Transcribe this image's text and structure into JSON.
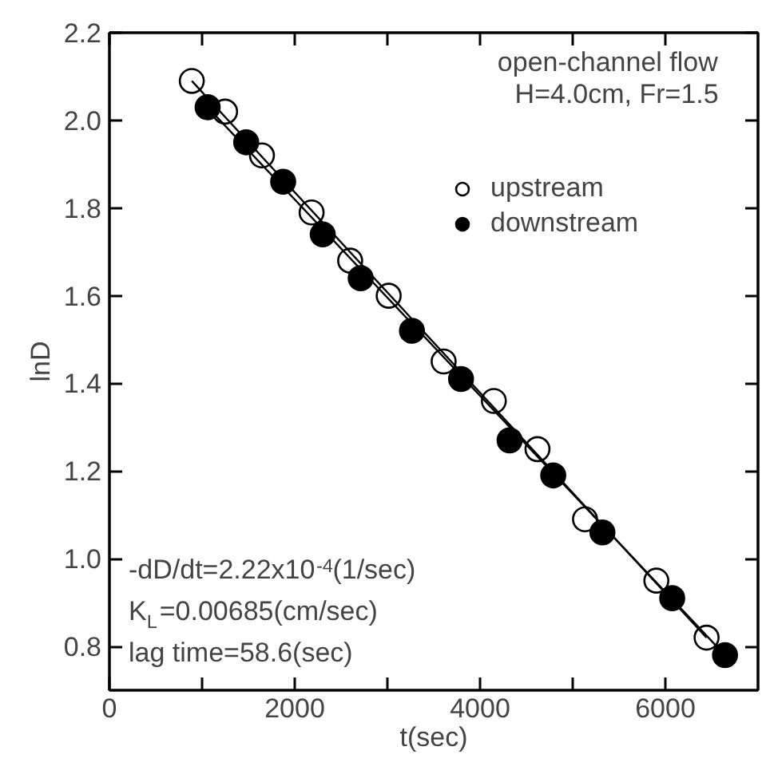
{
  "chart_data": {
    "type": "scatter",
    "xlabel": "t(sec)",
    "ylabel": "lnD",
    "xlim": [
      0,
      7000
    ],
    "ylim": [
      0.7,
      2.2
    ],
    "xticks": [
      0,
      {
        "value": 1000,
        "label": null
      },
      2000,
      {
        "value": 3000,
        "label": null
      },
      4000,
      {
        "value": 5000,
        "label": null
      },
      6000
    ],
    "yticks": [
      0.8,
      {
        "value": 1.0,
        "label": "1.0"
      },
      1.2,
      1.4,
      1.6,
      1.8,
      {
        "value": 2.0,
        "label": "2.0"
      },
      2.2
    ],
    "legend": "top right",
    "grid": false,
    "annotations": [
      "open-channel flow",
      "H=4.0cm, Fr=1.5",
      "-dD/dt=2.22x10$^{-4}$(1/sec)",
      "K$_{L}$=0.00685(cm/sec)",
      "lag time=58.6(sec)"
    ],
    "series": [
      {
        "name": "upstream",
        "marker": "circle",
        "color": "#ffffff",
        "x": [
          889,
          1248,
          1646,
          2182,
          2598,
          3014,
          3607,
          4149,
          4620,
          5133,
          5903,
          6445
        ],
        "values": [
          2.09,
          2.02,
          1.92,
          1.79,
          1.68,
          1.6,
          1.45,
          1.36,
          1.25,
          1.09,
          0.95,
          0.82
        ]
      },
      {
        "name": "downstream",
        "marker": "circle",
        "color": "#000000",
        "x": [
          1060,
          1476,
          1875,
          2302,
          2712,
          3265,
          3795,
          4319,
          4790,
          5321,
          6074,
          6644
        ],
        "values": [
          2.03,
          1.95,
          1.86,
          1.74,
          1.64,
          1.52,
          1.41,
          1.27,
          1.19,
          1.06,
          0.91,
          0.78
        ]
      },
      {
        "type": "line",
        "marker": "none",
        "color": "#000000",
        "x": [
          889,
          6445
        ],
        "values": [
          2.09,
          0.82
        ]
      },
      {
        "type": "line",
        "marker": "none",
        "color": "#000000",
        "x": [
          1060,
          6644
        ],
        "values": [
          2.03,
          0.78
        ]
      }
    ]
  }
}
